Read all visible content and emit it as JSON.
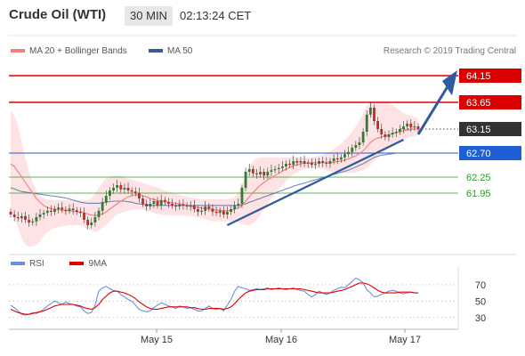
{
  "header": {
    "instrument": "Crude Oil (WTI)",
    "timeframe": "30 MIN",
    "time": "02:13:24 CET"
  },
  "legend": {
    "ma20_bb": "MA 20 + Bollinger Bands",
    "ma50": "MA 50",
    "credit": "Research © 2019 Trading Central"
  },
  "rsi_legend": {
    "rsi": "RSI",
    "ma9": "9MA"
  },
  "colors": {
    "ma20": "#f08080",
    "bollinger_fill": "#fde3e3",
    "ma50": "#3a5a9b",
    "resistance": "#dd0000",
    "pivot": "#1f5fd6",
    "support": "#2a9d2a",
    "last_price": "#333333",
    "candle_up": "#2e7d32",
    "candle_down": "#c62828",
    "rsi": "#6c8ee0",
    "rsi_ma": "#e00000",
    "trend_arrow": "#2f5a9e"
  },
  "chart_data": {
    "type": "candlestick",
    "x_tick_labels": [
      "May 15",
      "May 16",
      "May 17"
    ],
    "y_range": [
      60.9,
      64.5
    ],
    "levels": [
      {
        "price": 64.15,
        "label": "64.15",
        "style": "resistance"
      },
      {
        "price": 63.65,
        "label": "63.65",
        "style": "resistance"
      },
      {
        "price": 63.15,
        "label": "63.15",
        "style": "last"
      },
      {
        "price": 62.7,
        "label": "62.70",
        "style": "pivot"
      },
      {
        "price": 62.25,
        "label": "62.25",
        "style": "support"
      },
      {
        "price": 61.95,
        "label": "61.95",
        "style": "support"
      }
    ],
    "close": [
      61.55,
      61.5,
      61.48,
      61.52,
      61.45,
      61.4,
      61.42,
      61.5,
      61.55,
      61.58,
      61.62,
      61.6,
      61.65,
      61.68,
      61.64,
      61.62,
      61.66,
      61.63,
      61.6,
      61.58,
      61.45,
      61.35,
      61.4,
      61.5,
      61.62,
      61.78,
      61.9,
      62.0,
      62.05,
      62.1,
      62.02,
      62.05,
      62.0,
      61.98,
      61.95,
      61.85,
      61.75,
      61.7,
      61.75,
      61.8,
      61.72,
      61.82,
      61.78,
      61.75,
      61.72,
      61.7,
      61.74,
      61.72,
      61.7,
      61.72,
      61.65,
      61.6,
      61.62,
      61.7,
      61.66,
      61.6,
      61.58,
      61.62,
      61.55,
      61.6,
      61.65,
      61.72,
      61.75,
      62.05,
      62.35,
      62.4,
      62.32,
      62.3,
      62.35,
      62.28,
      62.35,
      62.38,
      62.4,
      62.42,
      62.45,
      62.5,
      62.48,
      62.55,
      62.52,
      62.55,
      62.5,
      62.52,
      62.48,
      62.5,
      62.55,
      62.52,
      62.5,
      62.55,
      62.6,
      62.58,
      62.62,
      62.68,
      62.72,
      62.8,
      62.85,
      62.9,
      63.1,
      63.42,
      63.55,
      63.3,
      63.15,
      63.05,
      63.0,
      63.05,
      63.08,
      63.1,
      63.15,
      63.2,
      63.25,
      63.18,
      63.2,
      63.15
    ],
    "ma20": [
      62.5,
      62.45,
      62.35,
      62.25,
      62.15,
      62.05,
      61.95,
      61.85,
      61.78,
      61.72,
      61.68,
      61.66,
      61.65,
      61.64,
      61.63,
      61.62,
      61.62,
      61.61,
      61.6,
      61.6,
      61.58,
      61.56,
      61.54,
      61.53,
      61.54,
      61.56,
      61.6,
      61.65,
      61.7,
      61.75,
      61.8,
      61.84,
      61.88,
      61.9,
      61.92,
      61.92,
      61.9,
      61.88,
      61.85,
      61.83,
      61.81,
      61.8,
      61.79,
      61.78,
      61.77,
      61.76,
      61.75,
      61.74,
      61.72,
      61.7,
      61.69,
      61.68,
      61.67,
      61.66,
      61.65,
      61.64,
      61.63,
      61.63,
      61.62,
      61.62,
      61.63,
      61.65,
      61.67,
      61.72,
      61.8,
      61.88,
      61.96,
      62.03,
      62.1,
      62.15,
      62.2,
      62.24,
      62.28,
      62.32,
      62.36,
      62.4,
      62.43,
      62.46,
      62.48,
      62.5,
      62.51,
      62.52,
      62.52,
      62.52,
      62.52,
      62.52,
      62.52,
      62.52,
      62.53,
      62.54,
      62.55,
      62.57,
      62.59,
      62.62,
      62.65,
      62.69,
      62.74,
      62.82,
      62.9,
      62.95,
      62.98,
      63.0,
      63.02,
      63.04,
      63.06,
      63.08,
      63.1,
      63.12,
      63.13,
      63.14,
      63.15,
      63.15
    ],
    "bb_upper": [
      63.5,
      63.4,
      63.2,
      62.9,
      62.6,
      62.35,
      62.15,
      62.0,
      61.9,
      61.85,
      61.83,
      61.82,
      61.82,
      61.82,
      61.82,
      61.82,
      61.82,
      61.82,
      61.82,
      61.82,
      61.82,
      61.82,
      61.85,
      61.95,
      62.05,
      62.15,
      62.22,
      62.26,
      62.28,
      62.28,
      62.27,
      62.25,
      62.22,
      62.2,
      62.18,
      62.16,
      62.14,
      62.12,
      62.1,
      62.08,
      62.06,
      62.03,
      62.0,
      61.98,
      61.96,
      61.94,
      61.92,
      61.9,
      61.88,
      61.87,
      61.86,
      61.85,
      61.84,
      61.84,
      61.84,
      61.84,
      61.84,
      61.84,
      61.84,
      61.84,
      61.85,
      61.88,
      61.95,
      62.1,
      62.3,
      62.45,
      62.55,
      62.6,
      62.62,
      62.62,
      62.62,
      62.62,
      62.62,
      62.62,
      62.62,
      62.62,
      62.62,
      62.62,
      62.62,
      62.62,
      62.62,
      62.62,
      62.62,
      62.63,
      62.65,
      62.67,
      62.7,
      62.73,
      62.77,
      62.82,
      62.88,
      62.95,
      63.02,
      63.1,
      63.2,
      63.3,
      63.45,
      63.6,
      63.65,
      63.66,
      63.66,
      63.66,
      63.65,
      63.64,
      63.6,
      63.55,
      63.5,
      63.45,
      63.42,
      63.4,
      63.38,
      63.35
    ],
    "bb_lower": [
      61.6,
      61.5,
      61.3,
      61.1,
      60.98,
      60.95,
      60.95,
      60.98,
      61.05,
      61.15,
      61.22,
      61.27,
      61.3,
      61.32,
      61.33,
      61.34,
      61.35,
      61.35,
      61.35,
      61.35,
      61.32,
      61.28,
      61.25,
      61.22,
      61.25,
      61.3,
      61.35,
      61.42,
      61.5,
      61.55,
      61.58,
      61.6,
      61.62,
      61.64,
      61.65,
      61.65,
      61.64,
      61.62,
      61.6,
      61.58,
      61.56,
      61.55,
      61.54,
      61.53,
      61.53,
      61.53,
      61.53,
      61.53,
      61.52,
      61.52,
      61.51,
      61.5,
      61.48,
      61.46,
      61.44,
      61.42,
      61.42,
      61.42,
      61.42,
      61.42,
      61.42,
      61.42,
      61.41,
      61.38,
      61.35,
      61.35,
      61.38,
      61.45,
      61.55,
      61.65,
      61.75,
      61.85,
      61.95,
      62.02,
      62.1,
      62.18,
      62.25,
      62.3,
      62.34,
      62.38,
      62.4,
      62.42,
      62.42,
      62.42,
      62.41,
      62.4,
      62.38,
      62.36,
      62.35,
      62.34,
      62.33,
      62.33,
      62.33,
      62.33,
      62.34,
      62.36,
      62.38,
      62.42,
      62.48,
      62.55,
      62.62,
      62.68,
      62.74,
      62.78,
      62.82,
      62.86,
      62.9,
      62.94,
      62.98,
      63.0,
      63.02,
      63.04
    ],
    "ma50": [
      62.05,
      62.03,
      62.0,
      61.98,
      61.97,
      61.96,
      61.95,
      61.94,
      61.93,
      61.92,
      61.91,
      61.9,
      61.89,
      61.88,
      61.87,
      61.86,
      61.84,
      61.82,
      61.8,
      61.78,
      61.77,
      61.76,
      61.76,
      61.76,
      61.76,
      61.77,
      61.78,
      61.79,
      61.8,
      61.8,
      61.8,
      61.8,
      61.79,
      61.78,
      61.76,
      61.75,
      61.74,
      61.73,
      61.72,
      61.72,
      61.72,
      61.72,
      61.72,
      61.72,
      61.72,
      61.72,
      61.72,
      61.72,
      61.72,
      61.72,
      61.72,
      61.72,
      61.72,
      61.72,
      61.72,
      61.72,
      61.72,
      61.72,
      61.72,
      61.72,
      61.72,
      61.72,
      61.72,
      61.73,
      61.75,
      61.78,
      61.8,
      61.83,
      61.85,
      61.88,
      61.9,
      61.93,
      61.95,
      61.98,
      62.0,
      62.03,
      62.05,
      62.08,
      62.1,
      62.12,
      62.14,
      62.16,
      62.18,
      62.2,
      62.22,
      62.24,
      62.26,
      62.28,
      62.3,
      62.32,
      62.34,
      62.36,
      62.38,
      62.41,
      62.44,
      62.47,
      62.5,
      62.54,
      62.58,
      62.62,
      62.64,
      62.66,
      62.67,
      62.68,
      62.69,
      62.7,
      62.7,
      62.7,
      62.7,
      62.7,
      62.7,
      62.7
    ],
    "rsi": {
      "y_ticks": [
        30,
        50,
        70
      ],
      "y_range": [
        20,
        85
      ],
      "rsi": [
        45,
        42,
        38,
        34,
        33,
        34,
        36,
        35,
        37,
        40,
        44,
        47,
        50,
        48,
        46,
        49,
        47,
        46,
        44,
        43,
        38,
        35,
        36,
        45,
        62,
        66,
        68,
        65,
        63,
        62,
        58,
        55,
        52,
        50,
        45,
        40,
        38,
        37,
        38,
        42,
        45,
        48,
        46,
        44,
        43,
        41,
        44,
        43,
        41,
        42,
        40,
        38,
        38,
        41,
        44,
        41,
        40,
        41,
        38,
        45,
        52,
        62,
        68,
        66,
        65,
        63,
        64,
        65,
        64,
        65,
        66,
        64,
        65,
        66,
        65,
        64,
        65,
        66,
        64,
        63,
        62,
        58,
        55,
        58,
        62,
        60,
        58,
        60,
        63,
        65,
        67,
        66,
        70,
        74,
        78,
        76,
        72,
        64,
        60,
        55,
        56,
        58,
        60,
        62,
        63,
        62,
        60,
        59,
        60,
        61,
        60,
        60
      ],
      "ma9": [
        40,
        38,
        36,
        35,
        34,
        34,
        35,
        36,
        37,
        38,
        40,
        42,
        44,
        45,
        46,
        46,
        46,
        46,
        45,
        44,
        42,
        41,
        40,
        42,
        46,
        52,
        56,
        60,
        62,
        62,
        61,
        60,
        58,
        56,
        53,
        49,
        46,
        43,
        41,
        40,
        40,
        41,
        42,
        43,
        43,
        43,
        43,
        43,
        43,
        42,
        42,
        41,
        40,
        40,
        41,
        41,
        41,
        41,
        40,
        41,
        43,
        47,
        52,
        56,
        60,
        62,
        63,
        64,
        64,
        64,
        65,
        65,
        65,
        65,
        65,
        65,
        65,
        65,
        65,
        65,
        64,
        63,
        62,
        61,
        60,
        60,
        60,
        60,
        61,
        62,
        63,
        64,
        66,
        68,
        70,
        72,
        72,
        71,
        69,
        66,
        63,
        61,
        60,
        60,
        60,
        60,
        61,
        61,
        61,
        61,
        60,
        60
      ]
    }
  }
}
